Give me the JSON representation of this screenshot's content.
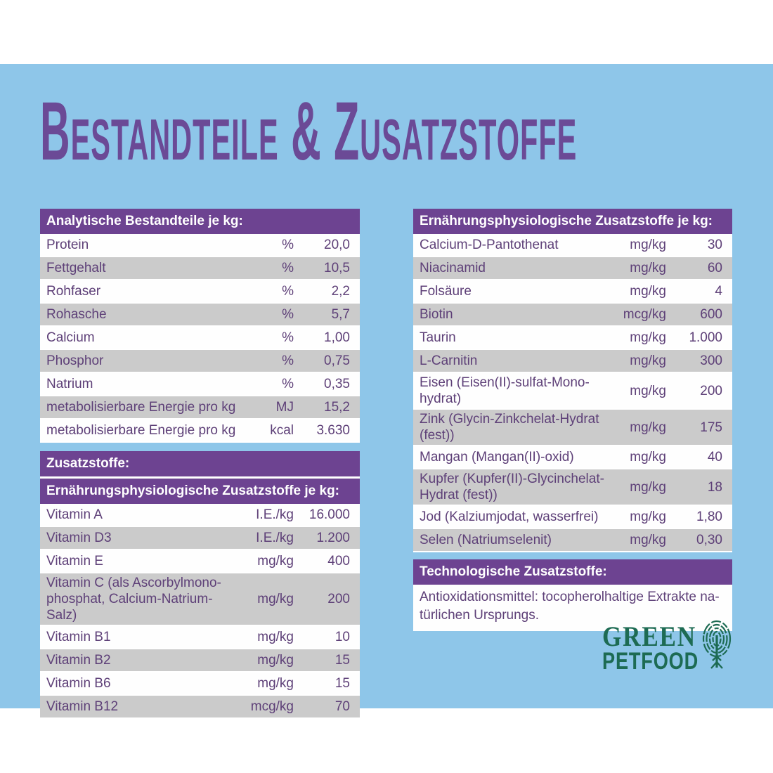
{
  "title": "Bestandteile & Zusatzstoffe",
  "colors": {
    "background_blue": "#8ec6e9",
    "header_purple": "#6d4391",
    "title_purple": "#6b4a96",
    "text_purple": "#5e4078",
    "row_gray": "#cbcbcb",
    "row_white": "#fefefe",
    "logo_green": "#1d6b53"
  },
  "left_column": {
    "analytic": {
      "header": "Analytische Bestandteile je kg:",
      "rows": [
        {
          "label": "Protein",
          "unit": "%",
          "value": "20,0"
        },
        {
          "label": "Fettgehalt",
          "unit": "%",
          "value": "10,5"
        },
        {
          "label": "Rohfaser",
          "unit": "%",
          "value": "2,2"
        },
        {
          "label": "Rohasche",
          "unit": "%",
          "value": "5,7"
        },
        {
          "label": "Calcium",
          "unit": "%",
          "value": "1,00"
        },
        {
          "label": "Phosphor",
          "unit": "%",
          "value": "0,75"
        },
        {
          "label": "Natrium",
          "unit": "%",
          "value": "0,35"
        },
        {
          "label": "metabolisierbare Energie pro kg",
          "unit": "MJ",
          "value": "15,2"
        },
        {
          "label": "metabolisierbare Energie pro kg",
          "unit": "kcal",
          "value": "3.630"
        }
      ]
    },
    "zusatzstoffe_header": "Zusatzstoffe:",
    "vitamins": {
      "header": "Ernährungsphysiologische Zusatzstoffe je kg:",
      "rows": [
        {
          "label": "Vitamin A",
          "unit": "I.E./kg",
          "value": "16.000"
        },
        {
          "label": "Vitamin D3",
          "unit": "I.E./kg",
          "value": "1.200"
        },
        {
          "label": "Vitamin E",
          "unit": "mg/kg",
          "value": "400"
        },
        {
          "label": "Vitamin C (als Ascorbylmono-\nphosphat, Calcium-Natrium-Salz)",
          "unit": "mg/kg",
          "value": "200"
        },
        {
          "label": "Vitamin B1",
          "unit": "mg/kg",
          "value": "10"
        },
        {
          "label": "Vitamin B2",
          "unit": "mg/kg",
          "value": "15"
        },
        {
          "label": "Vitamin B6",
          "unit": "mg/kg",
          "value": "15"
        },
        {
          "label": "Vitamin B12",
          "unit": "mcg/kg",
          "value": "70"
        }
      ]
    }
  },
  "right_column": {
    "minerals": {
      "header": "Ernährungsphysiologische Zusatzstoffe je kg:",
      "rows": [
        {
          "label": "Calcium-D-Pantothenat",
          "unit": "mg/kg",
          "value": "30"
        },
        {
          "label": "Niacinamid",
          "unit": "mg/kg",
          "value": "60"
        },
        {
          "label": "Folsäure",
          "unit": "mg/kg",
          "value": "4"
        },
        {
          "label": "Biotin",
          "unit": "mcg/kg",
          "value": "600"
        },
        {
          "label": "Taurin",
          "unit": "mg/kg",
          "value": "1.000"
        },
        {
          "label": "L-Carnitin",
          "unit": "mg/kg",
          "value": "300"
        },
        {
          "label": "Eisen (Eisen(II)-sulfat-Mono-\nhydrat)",
          "unit": "mg/kg",
          "value": "200"
        },
        {
          "label": "Zink (Glycin-Zinkchelat-Hydrat\n(fest))",
          "unit": "mg/kg",
          "value": "175"
        },
        {
          "label": "Mangan (Mangan(II)-oxid)",
          "unit": "mg/kg",
          "value": "40"
        },
        {
          "label": "Kupfer (Kupfer(II)-Glycinchelat-\nHydrat (fest))",
          "unit": "mg/kg",
          "value": "18"
        },
        {
          "label": "Jod (Kalziumjodat, wasserfrei)",
          "unit": "mg/kg",
          "value": "1,80"
        },
        {
          "label": "Selen (Natriumselenit)",
          "unit": "mg/kg",
          "value": "0,30"
        }
      ]
    },
    "technological": {
      "header": "Technologische Zusatzstoffe:",
      "body": "Antioxidationsmittel: tocopherolhaltige Extrakte na-\ntürlichen Ursprungs."
    }
  },
  "logo": {
    "line1": "GREEN",
    "line2": "PETFOOD",
    "icon": "tree-fingerprint-icon"
  }
}
